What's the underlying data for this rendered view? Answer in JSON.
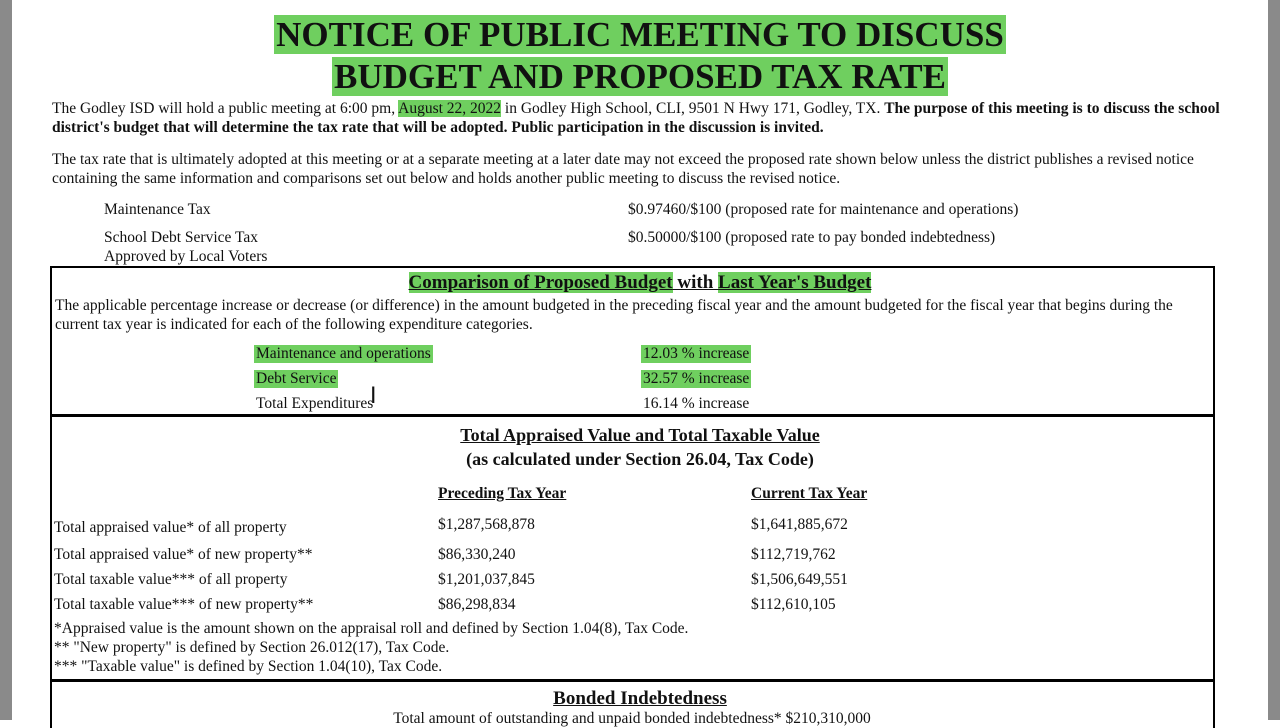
{
  "title_line1": "NOTICE OF PUBLIC MEETING TO DISCUSS",
  "title_line2": "BUDGET AND PROPOSED TAX RATE",
  "intro": {
    "part1": "The Godley ISD will hold a public meeting at 6:00 pm, ",
    "date": "August 22, 2022",
    "part2": " in Godley High School, CLI, 9501 N Hwy 171, Godley, TX. ",
    "bold": "The purpose of this meeting is to discuss the school district's budget that will determine the tax rate that will be adopted. Public participation in the discussion is invited."
  },
  "rate_notice": "The tax rate that is ultimately adopted at this meeting or at a separate meeting at a later date may not exceed the proposed rate shown below unless the district publishes a revised notice containing the same information and comparisons set out below and holds another public meeting to discuss the revised notice.",
  "taxes": [
    {
      "label": "Maintenance Tax",
      "value": "$0.97460/$100 (proposed rate for maintenance and operations)"
    },
    {
      "label": "School Debt Service Tax",
      "label2": "Approved by Local Voters",
      "value": "$0.50000/$100 (proposed rate to pay bonded indebtedness)"
    }
  ],
  "comparison": {
    "heading_a": "Comparison of Proposed Budget",
    "heading_b": " with ",
    "heading_c": "Last Year's Budget",
    "text": "The applicable percentage increase or decrease (or difference) in the amount budgeted in the preceding fiscal year and the amount budgeted for the fiscal year that begins during the current tax year is indicated for each of the following expenditure categories.",
    "rows": [
      {
        "label": "Maintenance and operations",
        "value": "12.03 % increase"
      },
      {
        "label": "Debt Service",
        "value": "32.57 % increase"
      },
      {
        "label": "Total Expenditures",
        "value": "16.14 % increase"
      }
    ]
  },
  "appraised": {
    "heading1": "Total Appraised Value and Total Taxable Value",
    "heading2": "(as calculated under Section 26.04, Tax Code)",
    "col_preceding": "Preceding Tax Year",
    "col_current": "Current Tax Year",
    "rows": [
      {
        "label": "Total appraised value* of all property",
        "preceding": "$1,287,568,878",
        "current": "$1,641,885,672"
      },
      {
        "label": "Total appraised value* of new property**",
        "preceding": "$86,330,240",
        "current": "$112,719,762"
      },
      {
        "label": "Total taxable value*** of all property",
        "preceding": "$1,201,037,845",
        "current": "$1,506,649,551"
      },
      {
        "label": "Total taxable value*** of new property**",
        "preceding": "$86,298,834",
        "current": "$112,610,105"
      }
    ],
    "notes": [
      "*Appraised value is the amount shown on the appraisal roll and defined by Section 1.04(8), Tax Code.",
      "** \"New property\" is defined by Section 26.012(17), Tax Code.",
      "*** \"Taxable value\" is defined by Section 1.04(10), Tax Code."
    ]
  },
  "bonded": {
    "heading": "Bonded Indebtedness",
    "text": "Total amount of outstanding and unpaid bonded indebtedness* $210,310,000"
  },
  "highlight_color": "#6fcf5f"
}
